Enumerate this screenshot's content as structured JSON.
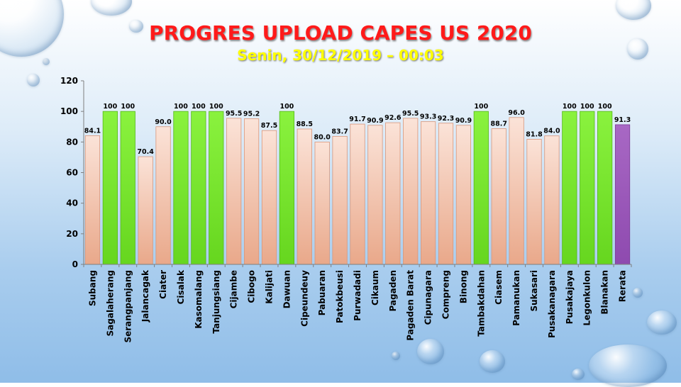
{
  "header": {
    "title": "PROGRES UPLOAD CAPES US 2020",
    "subtitle": "Senin, 30/12/2019 – 00:03"
  },
  "colors": {
    "complete": "#7fe832",
    "partial": "#f4c5ae",
    "average": "#9b59b6"
  },
  "chart_data": {
    "type": "bar",
    "title": "PROGRES UPLOAD CAPES US 2020",
    "subtitle": "Senin, 30/12/2019 – 00:03",
    "xlabel": "",
    "ylabel": "",
    "ylim": [
      0,
      120
    ],
    "yticks": [
      0,
      20,
      40,
      60,
      80,
      100,
      120
    ],
    "grid": false,
    "legend": "none",
    "categories": [
      "Subang",
      "Sagalaherang",
      "Serangpanjang",
      "Jalancagak",
      "Ciater",
      "Cisalak",
      "Kasomalang",
      "Tanjungsiang",
      "Cijambe",
      "Cibogo",
      "Kalijati",
      "Dawuan",
      "Cipeundeuy",
      "Pabuaran",
      "Patokbeusi",
      "Purwadadi",
      "Cikaum",
      "Pagaden",
      "Pagaden Barat",
      "Cipunagara",
      "Compreng",
      "Binong",
      "Tambakdahan",
      "Ciasem",
      "Pamanukan",
      "Sukasari",
      "Pusakanagara",
      "Pusakajaya",
      "Legonkulon",
      "Blanakan",
      "Rerata"
    ],
    "values": [
      84.1,
      100,
      100,
      70.4,
      90.0,
      100,
      100,
      100,
      95.5,
      95.2,
      87.5,
      100,
      88.5,
      80.0,
      83.7,
      91.7,
      90.9,
      92.6,
      95.5,
      93.3,
      92.3,
      90.9,
      100,
      88.7,
      96.0,
      81.8,
      84.0,
      100,
      100,
      100,
      91.3
    ],
    "value_labels": [
      "84.1",
      "100",
      "100",
      "70.4",
      "90.0",
      "100",
      "100",
      "100",
      "95.5",
      "95.2",
      "87.5",
      "100",
      "88.5",
      "80.0",
      "83.7",
      "91.7",
      "90.9",
      "92.6",
      "95.5",
      "93.3",
      "92.3",
      "90.9",
      "100",
      "88.7",
      "96.0",
      "81.8",
      "84.0",
      "100",
      "100",
      "100",
      "91.3"
    ]
  }
}
